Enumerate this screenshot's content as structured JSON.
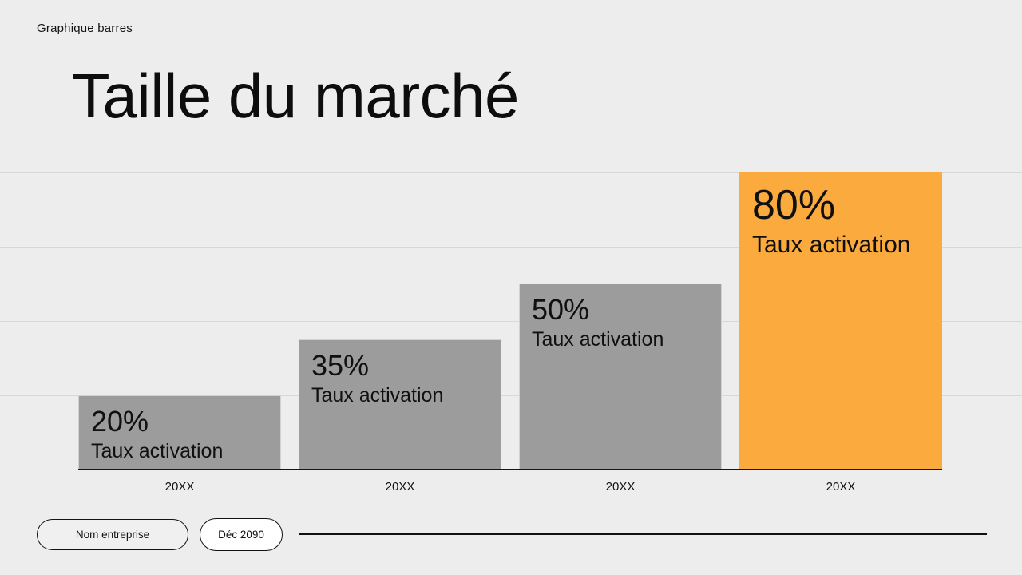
{
  "header": {
    "kicker": "Graphique barres",
    "title": "Taille du marché"
  },
  "chart_data": {
    "type": "bar",
    "title": "Taille du marché",
    "categories": [
      "20XX",
      "20XX",
      "20XX",
      "20XX"
    ],
    "values": [
      20,
      35,
      50,
      80
    ],
    "value_suffix": "%",
    "bar_sublabel": "Taux activation",
    "bar_labels": [
      "20% Taux activation",
      "35% Taux activation",
      "50% Taux activation",
      "80% Taux activation"
    ],
    "highlight_index": 3,
    "xlabel": "",
    "ylabel": "",
    "ylim": [
      0,
      80
    ],
    "gridline_step": 20,
    "grid": true,
    "legend": "none",
    "colors": {
      "bar": "#9d9c9d",
      "highlight": "#fbaa3d",
      "gridline": "#d8d7da",
      "axis": "#161616",
      "label_text": "#101010",
      "background": "#eeedee"
    }
  },
  "footer": {
    "company_pill": "Nom entreprise",
    "date_pill": "Déc 2090"
  }
}
